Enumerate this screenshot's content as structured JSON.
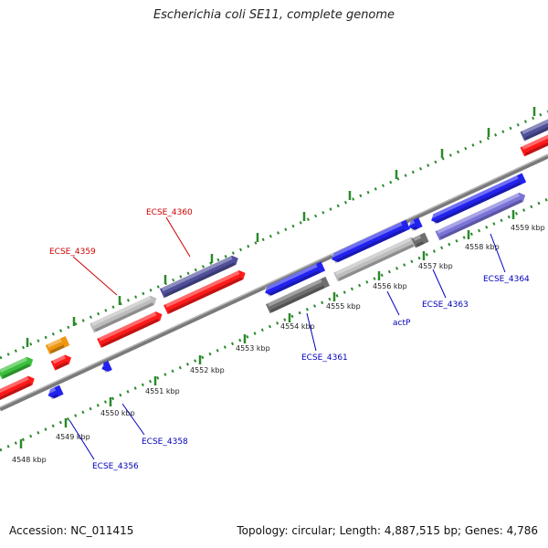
{
  "title": "Escherichia coli SE11, complete genome",
  "footer": {
    "accession": "Accession: NC_011415",
    "topology": "Topology: circular; Length: 4,887,515 bp; Genes: 4,786"
  },
  "colors": {
    "axis": "#888888",
    "tick": "#2b8a2b",
    "label_red": "#cc0000",
    "label_blue": "#0000bb",
    "forward_cds": "#ff1a1a",
    "reverse_cds": "#2222ee",
    "gray_feature": "#bdbdbd",
    "dark_gray_feature": "#6e6e6e",
    "slate_feature": "#4f4f9a",
    "lavender_feature": "#7b73d8",
    "green_feature": "#3bbf3b",
    "orange_feature": "#f0960f"
  },
  "scale_labels": [
    "4548 kbp",
    "4549 kbp",
    "4550 kbp",
    "4551 kbp",
    "4552 kbp",
    "4553 kbp",
    "4554 kbp",
    "4555 kbp",
    "4556 kbp",
    "4557 kbp",
    "4558 kbp",
    "4559 kbp"
  ],
  "gene_labels": [
    {
      "text": "ECSE_4360",
      "color": "red"
    },
    {
      "text": "ECSE_4359",
      "color": "red"
    },
    {
      "text": "ECSE_4361",
      "color": "blue"
    },
    {
      "text": "actP",
      "color": "blue"
    },
    {
      "text": "ECSE_4363",
      "color": "blue"
    },
    {
      "text": "ECSE_4364",
      "color": "blue"
    },
    {
      "text": "ECSE_4358",
      "color": "blue"
    },
    {
      "text": "ECSE_4356",
      "color": "blue"
    }
  ]
}
